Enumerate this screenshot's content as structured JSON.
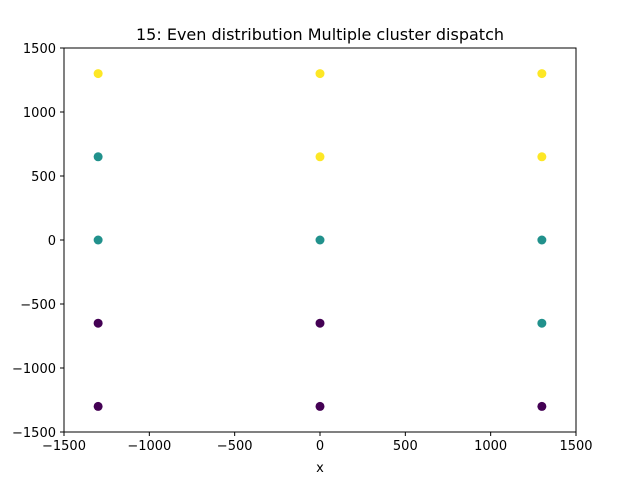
{
  "chart_data": {
    "type": "scatter",
    "title": "15: Even distribution Multiple cluster dispatch",
    "xlabel": "x",
    "ylabel": "",
    "xlim": [
      -1500,
      1500
    ],
    "ylim": [
      -1500,
      1500
    ],
    "xticks": [
      -1500,
      -1000,
      -500,
      0,
      500,
      1000,
      1500
    ],
    "yticks": [
      -1500,
      -1000,
      -500,
      0,
      500,
      1000,
      1500
    ],
    "grid": false,
    "colors": {
      "cluster_0": "#440154",
      "cluster_1": "#21918c",
      "cluster_2": "#fde725"
    },
    "points": [
      {
        "x": -1300,
        "y": 1300,
        "cluster": 2
      },
      {
        "x": 0,
        "y": 1300,
        "cluster": 2
      },
      {
        "x": 1300,
        "y": 1300,
        "cluster": 2
      },
      {
        "x": -1300,
        "y": 650,
        "cluster": 1
      },
      {
        "x": 0,
        "y": 650,
        "cluster": 2
      },
      {
        "x": 1300,
        "y": 650,
        "cluster": 2
      },
      {
        "x": -1300,
        "y": 0,
        "cluster": 1
      },
      {
        "x": 0,
        "y": 0,
        "cluster": 1
      },
      {
        "x": 1300,
        "y": 0,
        "cluster": 1
      },
      {
        "x": -1300,
        "y": -650,
        "cluster": 0
      },
      {
        "x": 0,
        "y": -650,
        "cluster": 0
      },
      {
        "x": 1300,
        "y": -650,
        "cluster": 1
      },
      {
        "x": -1300,
        "y": -1300,
        "cluster": 0
      },
      {
        "x": 0,
        "y": -1300,
        "cluster": 0
      },
      {
        "x": 1300,
        "y": -1300,
        "cluster": 0
      }
    ]
  }
}
